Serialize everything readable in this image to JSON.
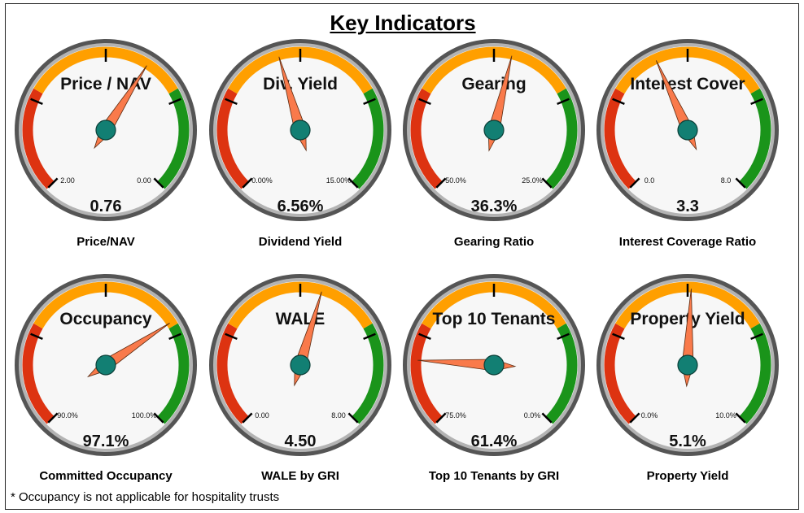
{
  "title": "Key Indicators",
  "footnote": "* Occupancy is not applicable for hospitality trusts",
  "colors": {
    "red": "#dd3311",
    "orange": "#ff9f00",
    "green": "#1a941a",
    "needle": "#f97a4b",
    "hub": "#127f73",
    "dial_face": "#f7f7f7",
    "dial_rim": "#b3b3b3"
  },
  "chart_data": [
    {
      "type": "gauge",
      "title": "Price / NAV",
      "caption": "Price/NAV",
      "value": 0.76,
      "value_label": "0.76",
      "min_label": "2.00",
      "max_label": "0.00",
      "needle_fraction": 0.62,
      "zones": [
        "red",
        "orange",
        "green"
      ]
    },
    {
      "type": "gauge",
      "title": "Div. Yield",
      "caption": "Dividend Yield",
      "value": 6.56,
      "value_label": "6.56%",
      "min_label": "0.00%",
      "max_label": "15.00%",
      "needle_fraction": 0.44,
      "zones": [
        "red",
        "orange",
        "green"
      ]
    },
    {
      "type": "gauge",
      "title": "Gearing",
      "caption": "Gearing Ratio",
      "value": 36.3,
      "value_label": "36.3%",
      "min_label": "50.0%",
      "max_label": "25.0%",
      "needle_fraction": 0.55,
      "zones": [
        "red",
        "orange",
        "green"
      ]
    },
    {
      "type": "gauge",
      "title": "Interest Cover",
      "caption": "Interest Coverage Ratio",
      "value": 3.3,
      "value_label": "3.3",
      "min_label": "0.0",
      "max_label": "8.0",
      "needle_fraction": 0.41,
      "zones": [
        "red",
        "orange",
        "green"
      ]
    },
    {
      "type": "gauge",
      "title": "Occupancy",
      "caption": "Committed Occupancy",
      "value": 97.1,
      "value_label": "97.1%",
      "min_label": "90.0%",
      "max_label": "100.0%",
      "needle_fraction": 0.71,
      "zones": [
        "red",
        "orange",
        "green"
      ]
    },
    {
      "type": "gauge",
      "title": "WALE",
      "caption": "WALE by GRI",
      "value": 4.5,
      "value_label": "4.50",
      "min_label": "0.00",
      "max_label": "8.00",
      "needle_fraction": 0.56,
      "zones": [
        "red",
        "orange",
        "green"
      ]
    },
    {
      "type": "gauge",
      "title": "Top 10 Tenants",
      "caption": "Top 10 Tenants by GRI",
      "value": 61.4,
      "value_label": "61.4%",
      "min_label": "75.0%",
      "max_label": "0.0%",
      "needle_fraction": 0.18,
      "zones": [
        "red",
        "orange",
        "green"
      ]
    },
    {
      "type": "gauge",
      "title": "Property Yield",
      "caption": "Property Yield",
      "value": 5.1,
      "value_label": "5.1%",
      "min_label": "0.0%",
      "max_label": "10.0%",
      "needle_fraction": 0.51,
      "zones": [
        "red",
        "orange",
        "green"
      ]
    }
  ]
}
